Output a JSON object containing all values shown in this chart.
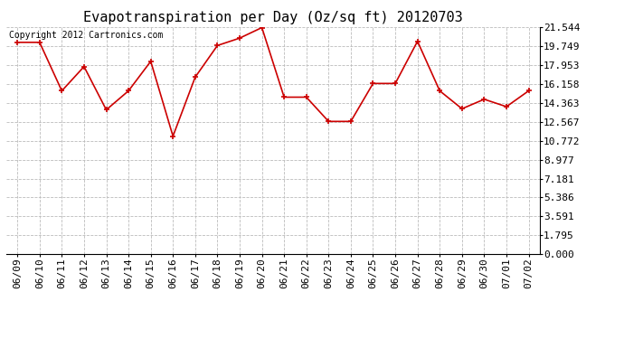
{
  "title": "Evapotranspiration per Day (Oz/sq ft) 20120703",
  "copyright": "Copyright 2012 Cartronics.com",
  "dates": [
    "06/09",
    "06/10",
    "06/11",
    "06/12",
    "06/13",
    "06/14",
    "06/15",
    "06/16",
    "06/17",
    "06/18",
    "06/19",
    "06/20",
    "06/21",
    "06/22",
    "06/23",
    "06/24",
    "06/25",
    "06/26",
    "06/27",
    "06/28",
    "06/29",
    "06/30",
    "07/01",
    "07/02"
  ],
  "values": [
    20.1,
    20.1,
    15.5,
    17.8,
    13.7,
    15.5,
    18.3,
    11.2,
    16.8,
    19.8,
    20.5,
    21.5,
    14.9,
    14.9,
    12.6,
    12.6,
    16.2,
    16.2,
    20.2,
    15.5,
    13.8,
    14.7,
    14.0,
    15.5
  ],
  "yticks": [
    0.0,
    1.795,
    3.591,
    5.386,
    7.181,
    8.977,
    10.772,
    12.567,
    14.363,
    16.158,
    17.953,
    19.749,
    21.544
  ],
  "line_color": "#cc0000",
  "marker": "+",
  "background_color": "#ffffff",
  "grid_color": "#bbbbbb",
  "title_fontsize": 11,
  "tick_fontsize": 8,
  "copyright_fontsize": 7,
  "ylim": [
    0.0,
    21.544
  ]
}
